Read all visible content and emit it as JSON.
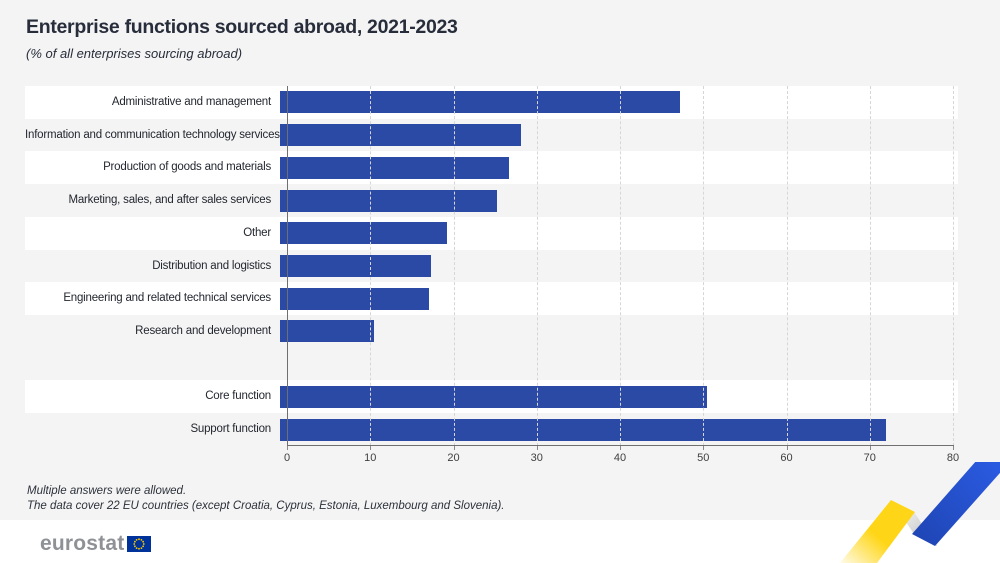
{
  "title": "Enterprise functions sourced abroad, 2021-2023",
  "subtitle": "(% of all enterprises sourcing abroad)",
  "footnotes": {
    "line1": "Multiple answers were allowed.",
    "line2": "The data cover 22 EU countries (except Croatia, Cyprus, Estonia, Luxembourg and Slovenia)."
  },
  "logo": {
    "text": "eurostat"
  },
  "colors": {
    "bar": "#2b4aa5",
    "flag_blue": "#003399",
    "star_yellow": "#ffcc00",
    "ribbon_yellow": "#ffd617",
    "ribbon_blue": "#2451cd",
    "background": "#f4f4f4",
    "stripe": "#ffffff"
  },
  "chart_data": {
    "type": "bar",
    "orientation": "horizontal",
    "title": "Enterprise functions sourced abroad, 2021-2023",
    "subtitle": "(% of all enterprises sourcing abroad)",
    "xlim": [
      0,
      80
    ],
    "xticks": [
      0,
      10,
      20,
      30,
      40,
      50,
      60,
      70,
      80
    ],
    "grid": "vertical-dashed",
    "legend": "none",
    "bar_color": "#2b4aa5",
    "groups": [
      {
        "categories": [
          "Administrative and management",
          "Information and communication technology services",
          "Production of goods and materials",
          "Marketing, sales, and after sales services",
          "Other",
          "Distribution and logistics",
          "Engineering and related technical services",
          "Research and development"
        ],
        "values": [
          47.5,
          28.6,
          27.2,
          25.8,
          19.8,
          17.9,
          17.7,
          11.2
        ]
      },
      {
        "categories": [
          "Core function",
          "Support function"
        ],
        "values": [
          50.7,
          71.9
        ]
      }
    ]
  }
}
